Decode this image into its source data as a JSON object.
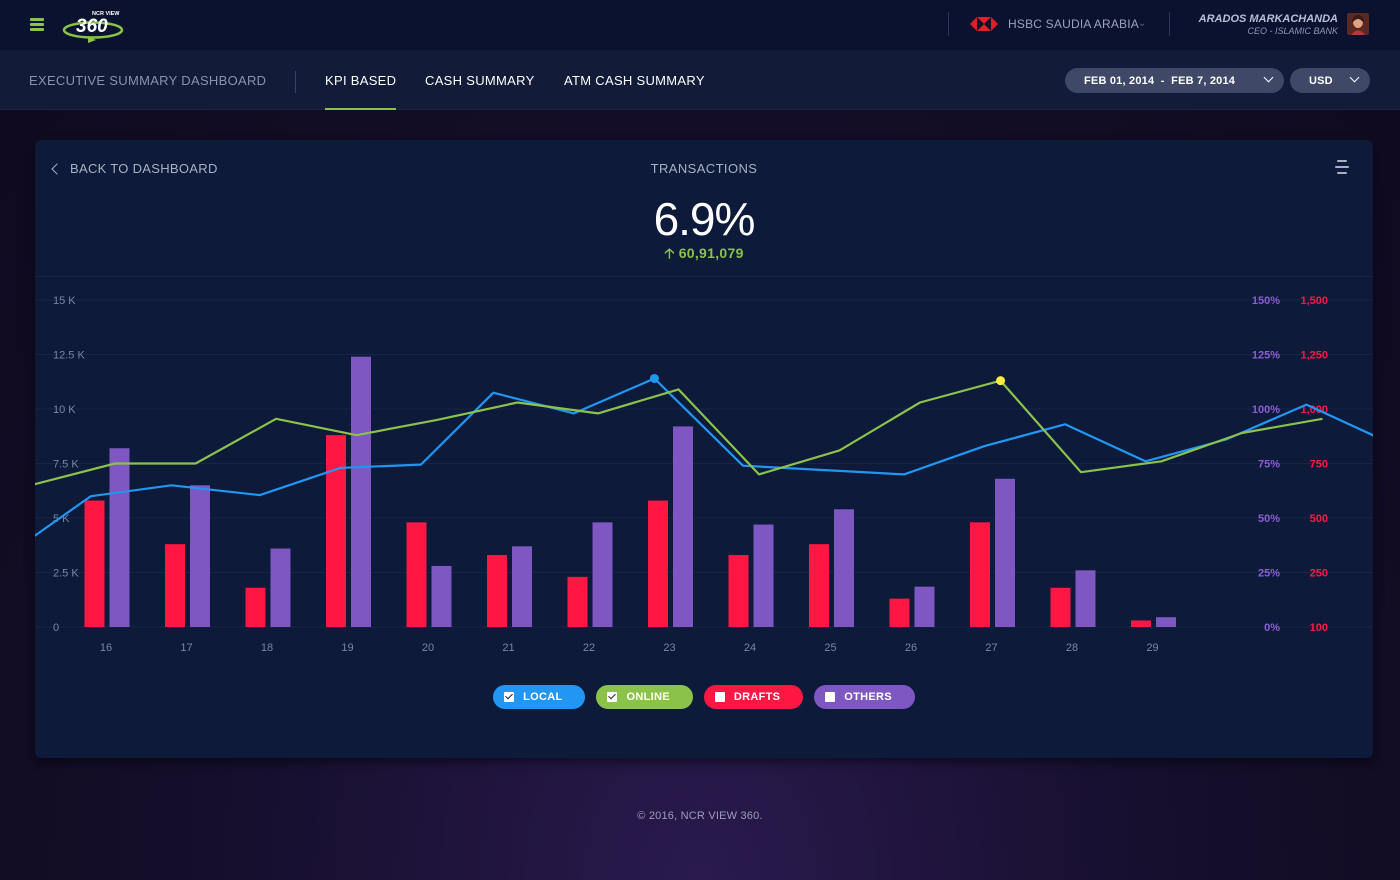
{
  "header": {
    "logo_small": "NCR VIEW",
    "logo_big": "360",
    "bank_name": "HSBC SAUDIA ARABIA",
    "user_name": "ARADOS MARKACHANDA",
    "user_role": "CEO - ISLAMIC BANK"
  },
  "nav": {
    "title": "EXECUTIVE SUMMARY DASHBOARD",
    "tabs": [
      "KPI BASED",
      "CASH SUMMARY",
      "ATM CASH SUMMARY"
    ],
    "active_tab": "KPI BASED",
    "date_range": "FEB 01, 2014  -  FEB 7, 2014",
    "currency": "USD"
  },
  "card": {
    "back_label": "BACK TO DASHBOARD",
    "title": "TRANSACTIONS",
    "kpi_value": "6.9",
    "kpi_unit": "%",
    "kpi_delta": "60,91,079"
  },
  "chart_data": {
    "type": "bar+line",
    "title": "TRANSACTIONS",
    "categories": [
      "16",
      "17",
      "18",
      "19",
      "20",
      "21",
      "22",
      "23",
      "24",
      "25",
      "26",
      "27",
      "28",
      "29"
    ],
    "left_axis": {
      "ticks": [
        "0",
        "2.5 K",
        "5 K",
        "7.5 K",
        "10 K",
        "12.5 K",
        "15 K"
      ],
      "range": [
        0,
        15000
      ]
    },
    "right_axis_pct": {
      "ticks": [
        "0%",
        "25%",
        "50%",
        "75%",
        "100%",
        "125%",
        "150%"
      ]
    },
    "right_axis_count": {
      "ticks": [
        "100",
        "250",
        "500",
        "750",
        "1,000",
        "1,250",
        "1,500"
      ]
    },
    "bar_series": [
      {
        "name": "DRAFTS",
        "color": "#ff1744",
        "values": [
          5800,
          3800,
          1800,
          8800,
          4800,
          3300,
          2300,
          5800,
          3300,
          3800,
          1300,
          4800,
          1800,
          300
        ]
      },
      {
        "name": "OTHERS",
        "color": "#7e57c2",
        "values": [
          8200,
          6500,
          3600,
          12400,
          2800,
          3700,
          4800,
          9200,
          4700,
          5400,
          1850,
          6800,
          2600,
          450
        ]
      }
    ],
    "line_series": [
      {
        "name": "LOCAL",
        "color": "#2196f3",
        "x": [
          -0.95,
          -0.2,
          0.8,
          1.9,
          2.9,
          3.9,
          4.8,
          5.8,
          6.8,
          7.9,
          9.9,
          10.9,
          11.9,
          12.9,
          13.9,
          14.9,
          15.9
        ],
        "values": [
          4050,
          6000,
          6500,
          6050,
          7300,
          7450,
          10750,
          9800,
          11400,
          7400,
          7000,
          8300,
          9300,
          7600,
          8600,
          10200,
          8500
        ],
        "highlight_index": 8
      },
      {
        "name": "ONLINE",
        "color": "#8bc34a",
        "x": [
          -0.95,
          0.1,
          1.1,
          2.1,
          3.1,
          4.1,
          5.1,
          6.1,
          7.1,
          8.1,
          9.1,
          10.1,
          11.1,
          12.1,
          13.1,
          14.1,
          15.1
        ],
        "values": [
          6500,
          7500,
          7500,
          9550,
          8800,
          9500,
          10300,
          9800,
          10900,
          7000,
          8100,
          10300,
          11300,
          7100,
          7600,
          8900,
          9550
        ],
        "highlight_index": 12
      }
    ],
    "legend": [
      {
        "label": "LOCAL",
        "color": "#2196f3",
        "checked": true
      },
      {
        "label": "ONLINE",
        "color": "#8bc34a",
        "checked": true
      },
      {
        "label": "DRAFTS",
        "color": "#ff1744",
        "checked": false
      },
      {
        "label": "OTHERS",
        "color": "#7e57c2",
        "checked": false
      }
    ],
    "grid": true
  },
  "colors": {
    "accent_green": "#8bc34a",
    "axis_pct": "#8e5cd6",
    "axis_count": "#ff1744"
  },
  "footer": "© 2016,  NCR VIEW 360."
}
